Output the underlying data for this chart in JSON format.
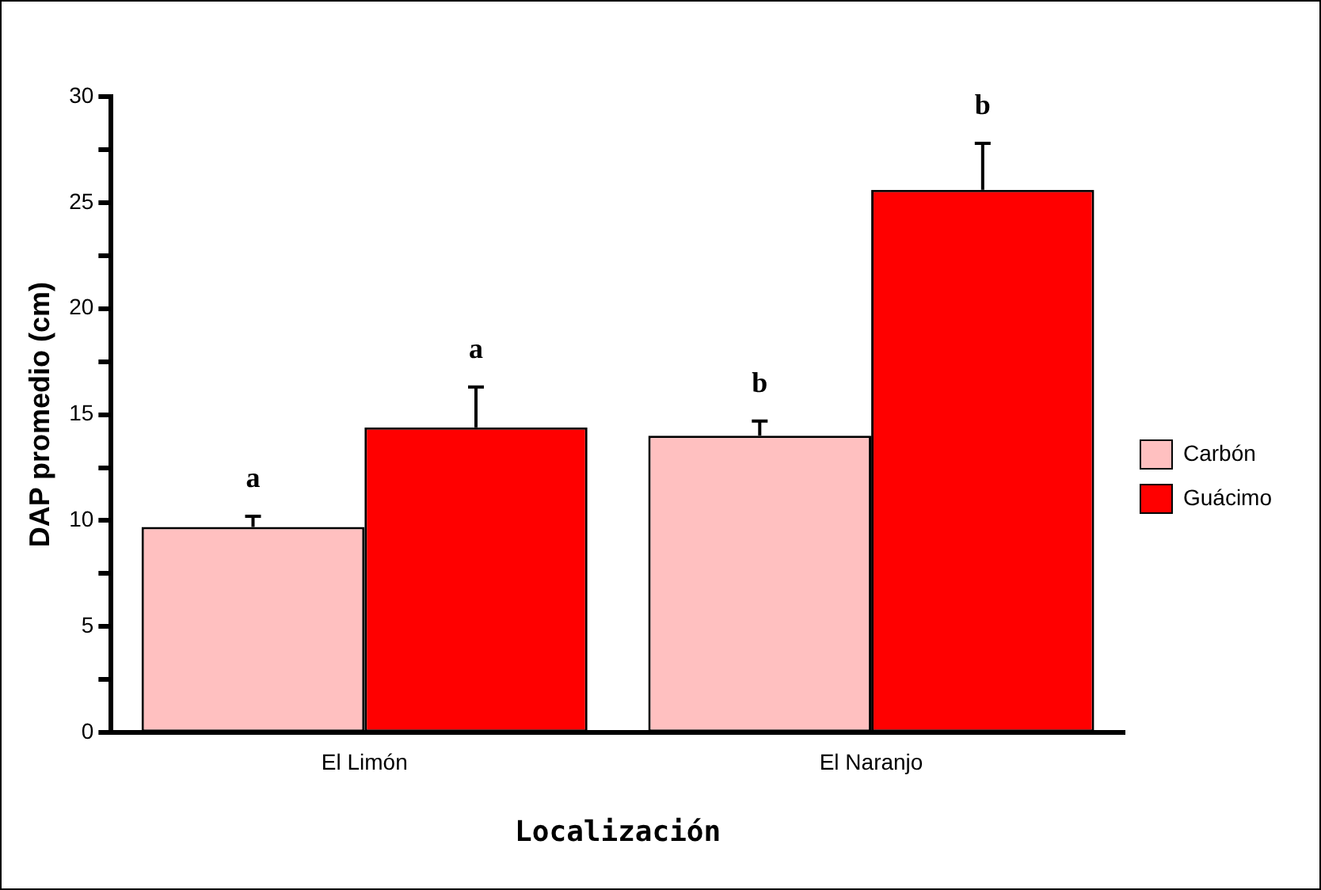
{
  "chart_data": {
    "type": "bar",
    "xlabel": "Localización",
    "ylabel": "DAP promedio (cm)",
    "categories": [
      "El Limón",
      "El Naranjo"
    ],
    "series": [
      {
        "name": "Carbón",
        "color": "#ffc0c0",
        "values": [
          9.7,
          14.0
        ],
        "errors": [
          [
            9.7,
            10.2
          ],
          [
            14.0,
            14.7
          ]
        ]
      },
      {
        "name": "Guácimo",
        "color": "#ff0000",
        "values": [
          14.4,
          25.6
        ],
        "errors": [
          [
            14.4,
            16.3
          ],
          [
            25.6,
            27.8
          ]
        ]
      }
    ],
    "ylim": [
      0,
      30
    ],
    "yticks": [
      0,
      {
        "value": 2.5,
        "label": null
      },
      5,
      {
        "value": 7.5,
        "label": null
      },
      10,
      {
        "value": 12.5,
        "label": null
      },
      15,
      {
        "value": 17.5,
        "label": null
      },
      20,
      {
        "value": 22.5,
        "label": null
      },
      25,
      {
        "value": 27.5,
        "label": null
      },
      30
    ],
    "annotations": [
      "a",
      "a",
      "b",
      "b"
    ],
    "grid": false,
    "legend": "right"
  }
}
